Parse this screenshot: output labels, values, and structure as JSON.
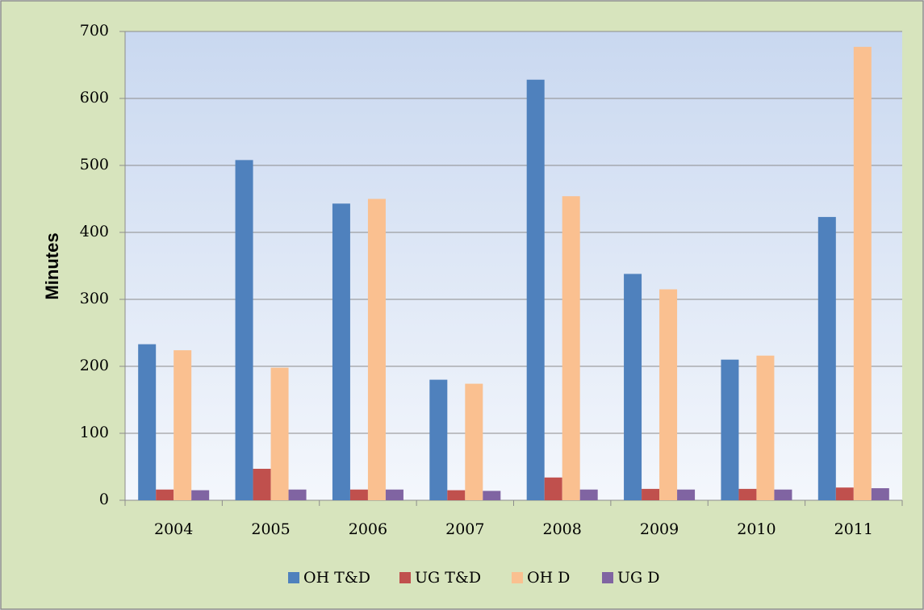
{
  "chart_data": {
    "type": "bar",
    "y_label": "Minutes",
    "categories": [
      "2004",
      "2005",
      "2006",
      "2007",
      "2008",
      "2009",
      "2010",
      "2011"
    ],
    "series": [
      {
        "name": "OH T&D",
        "color": "#4f81bd",
        "values": [
          233,
          508,
          443,
          180,
          628,
          338,
          210,
          423
        ]
      },
      {
        "name": "UG T&D",
        "color": "#c0504d",
        "values": [
          16,
          47,
          16,
          15,
          34,
          17,
          17,
          19
        ]
      },
      {
        "name": "OH D",
        "color": "#fac090",
        "values": [
          224,
          198,
          450,
          174,
          454,
          315,
          216,
          677
        ]
      },
      {
        "name": "UG D",
        "color": "#8064a2",
        "values": [
          15,
          16,
          16,
          14,
          16,
          16,
          16,
          18
        ]
      }
    ],
    "ylim": [
      0,
      700
    ],
    "yticks": [
      0,
      100,
      200,
      300,
      400,
      500,
      600,
      700
    ],
    "grid": true,
    "legend": "bottom"
  }
}
